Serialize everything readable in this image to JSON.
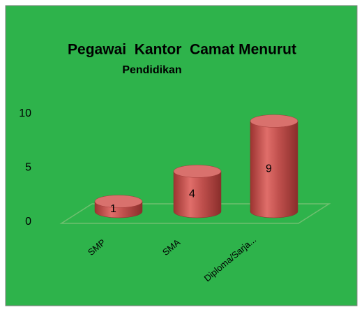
{
  "chart_data": {
    "type": "bar",
    "title": "Pegawai  Kantor  Camat Menurut",
    "subtitle": "Pendidikan",
    "categories": [
      "SMP",
      "SMA",
      "Diploma/Sarja..."
    ],
    "values": [
      1,
      4,
      9
    ],
    "color": "#c0504d",
    "ylim": [
      0,
      10
    ],
    "yticks": [
      0,
      5,
      10
    ]
  }
}
